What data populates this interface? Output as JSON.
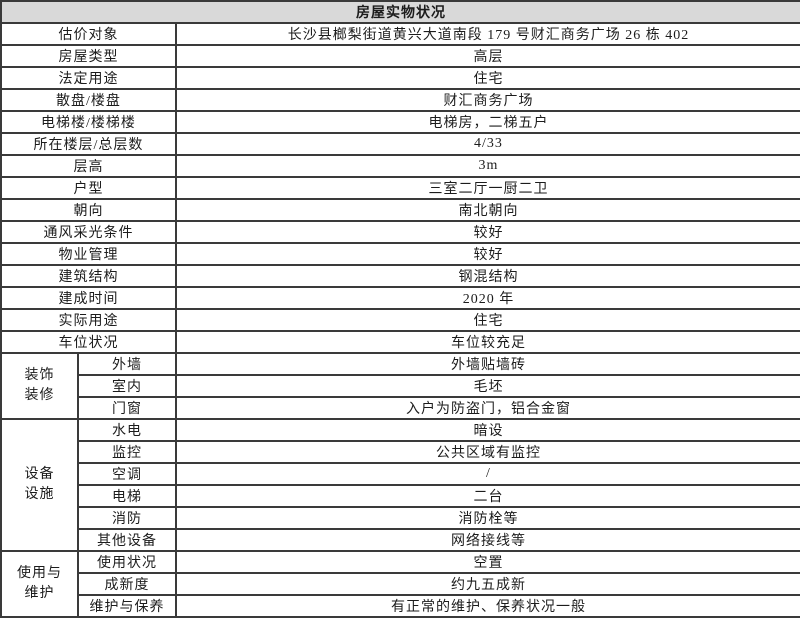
{
  "title": "房屋实物状况",
  "colors": {
    "title_background": "#d9d9d9",
    "border": "#3a3a3a",
    "text": "#1c1c1c"
  },
  "table": {
    "simple_rows": [
      {
        "label": "估价对象",
        "value": "长沙县榔梨街道黄兴大道南段 179 号财汇商务广场 26 栋 402"
      },
      {
        "label": "房屋类型",
        "value": "高层"
      },
      {
        "label": "法定用途",
        "value": "住宅"
      },
      {
        "label": "散盘/楼盘",
        "value": "财汇商务广场"
      },
      {
        "label": "电梯楼/楼梯楼",
        "value": "电梯房，二梯五户"
      },
      {
        "label": "所在楼层/总层数",
        "value": "4/33"
      },
      {
        "label": "层高",
        "value": "3m"
      },
      {
        "label": "户型",
        "value": "三室二厅一厨二卫"
      },
      {
        "label": "朝向",
        "value": "南北朝向"
      },
      {
        "label": "通风采光条件",
        "value": "较好"
      },
      {
        "label": "物业管理",
        "value": "较好"
      },
      {
        "label": "建筑结构",
        "value": "钢混结构"
      },
      {
        "label": "建成时间",
        "value": "2020 年"
      },
      {
        "label": "实际用途",
        "value": "住宅"
      },
      {
        "label": "车位状况",
        "value": "车位较充足"
      }
    ],
    "groups": [
      {
        "label": "装饰装修",
        "label_lines": [
          "装饰",
          "装修"
        ],
        "rows": [
          {
            "label": "外墙",
            "value": "外墙贴墙砖"
          },
          {
            "label": "室内",
            "value": "毛坯"
          },
          {
            "label": "门窗",
            "value": "入户为防盗门，铝合金窗"
          }
        ]
      },
      {
        "label": "设备设施",
        "label_lines": [
          "设备",
          "设施"
        ],
        "rows": [
          {
            "label": "水电",
            "value": "暗设"
          },
          {
            "label": "监控",
            "value": "公共区域有监控"
          },
          {
            "label": "空调",
            "value": "/"
          },
          {
            "label": "电梯",
            "value": "二台"
          },
          {
            "label": "消防",
            "value": "消防栓等"
          },
          {
            "label": "其他设备",
            "value": "网络接线等"
          }
        ]
      },
      {
        "label": "使用与维护",
        "label_lines": [
          "使用与",
          "维护"
        ],
        "rows": [
          {
            "label": "使用状况",
            "value": "空置"
          },
          {
            "label": "成新度",
            "value": "约九五成新"
          },
          {
            "label": "维护与保养",
            "value": "有正常的维护、保养状况一般"
          }
        ]
      }
    ]
  }
}
